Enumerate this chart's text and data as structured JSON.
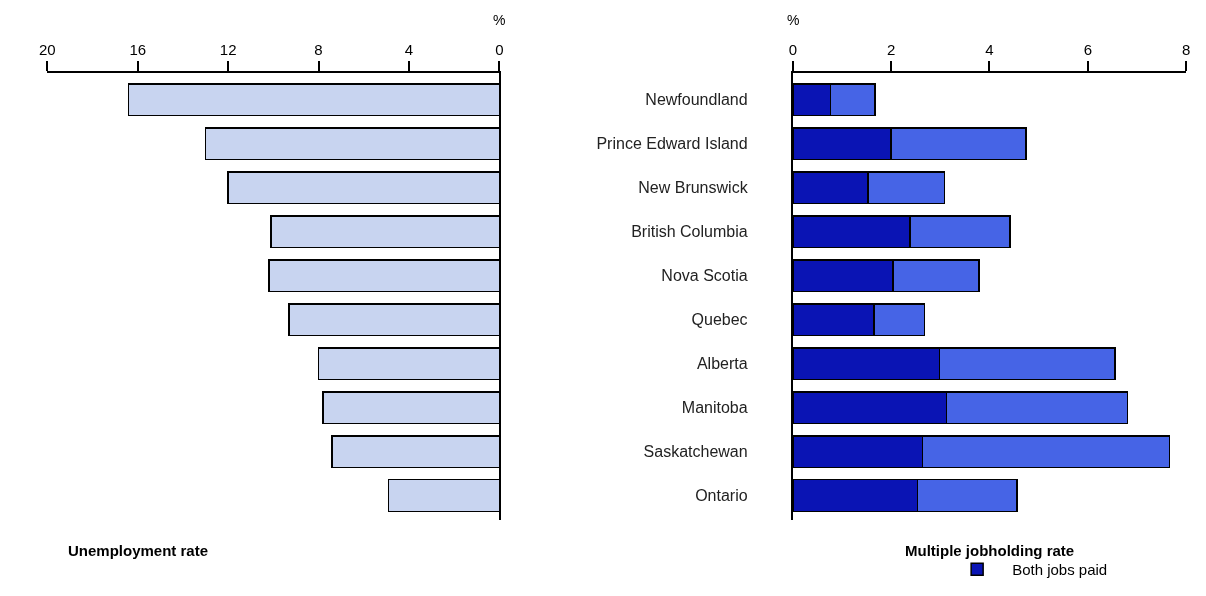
{
  "chart_data": [
    {
      "type": "bar",
      "orientation": "horizontal",
      "title": "Unemployment rate",
      "annotations": [
        "%"
      ],
      "categories": [
        null,
        null,
        null,
        null,
        null,
        null,
        null,
        null,
        null,
        null
      ],
      "series": [
        {
          "color": "#c8d4f0",
          "values": [
            16.4,
            13.0,
            12.0,
            10.1,
            10.2,
            9.3,
            8.0,
            7.8,
            7.4,
            4.9
          ]
        }
      ],
      "xlim": [
        20,
        0
      ],
      "xticks": [
        20,
        16,
        12,
        8,
        4,
        0
      ],
      "tick_labels": "x",
      "grid": false,
      "legend": false
    },
    {
      "type": "bar",
      "orientation": "horizontal",
      "stacked": true,
      "title": "Multiple jobholding rate",
      "annotations": [
        "%"
      ],
      "categories": [
        "Newfoundland",
        "Prince Edward Island",
        "New Brunswick",
        "British Columbia",
        "Nova Scotia",
        "Quebec",
        "Alberta",
        "Manitoba",
        "Saskatchewan",
        "Ontario"
      ],
      "series": [
        {
          "name": "Both jobs paid",
          "color": "#0a14b4",
          "values": [
            0.77,
            2.0,
            1.53,
            2.38,
            2.04,
            1.65,
            2.98,
            3.13,
            2.64,
            2.54
          ]
        },
        {
          "color": "#4664e6",
          "values": [
            0.9,
            2.74,
            1.55,
            2.04,
            1.75,
            1.03,
            3.57,
            3.68,
            5.02,
            2.02
          ]
        }
      ],
      "xlim": [
        0,
        8
      ],
      "xticks": [
        0,
        2,
        4,
        6,
        8
      ],
      "grid": false,
      "legend": "bottom"
    }
  ]
}
